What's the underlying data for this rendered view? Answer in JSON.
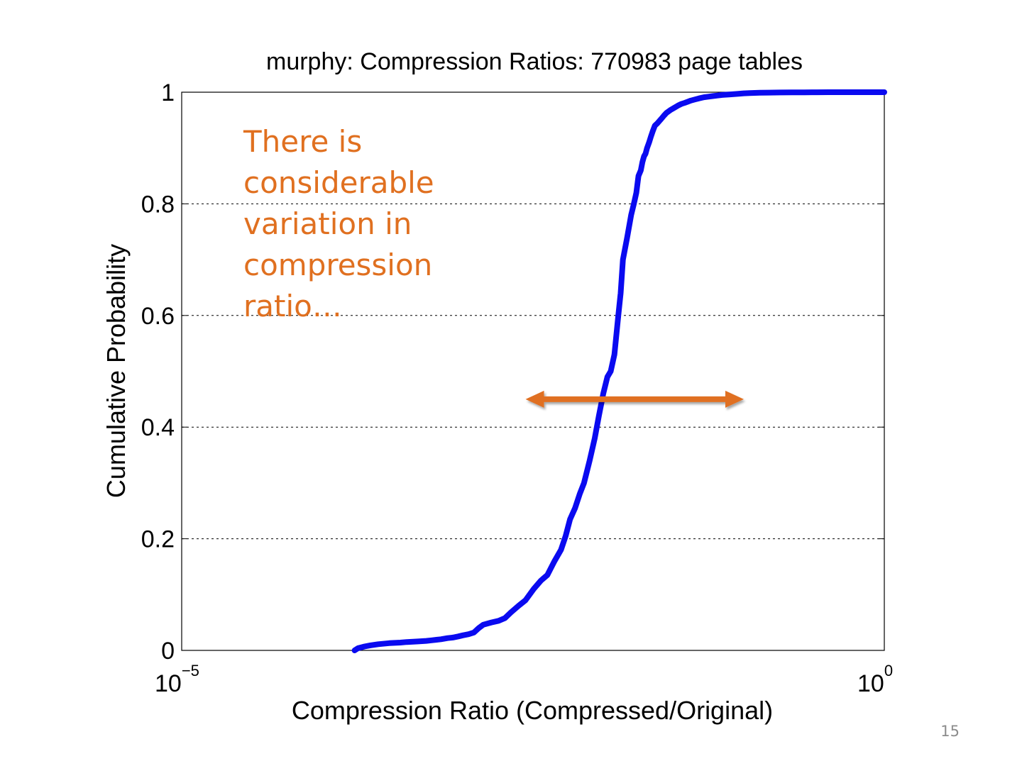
{
  "slide": {
    "page_number": "15"
  },
  "annotation": {
    "lines": [
      "There is",
      "considerable",
      "variation in",
      "compression",
      "ratio…"
    ],
    "color": "#E07020",
    "arrow": {
      "y": 0.45,
      "x_from": 0.0028,
      "x_to": 0.1,
      "color": "#E07020"
    }
  },
  "chart_data": {
    "type": "line",
    "title": "murphy: Compression Ratios: 770983 page tables",
    "xlabel": "Compression Ratio (Compressed/Original)",
    "ylabel": "Cumulative Probability",
    "xscale": "log",
    "xlim": [
      1e-05,
      1
    ],
    "ylim": [
      0,
      1
    ],
    "xticks": [
      {
        "base": "10",
        "exp": "−5",
        "value": 1e-05
      },
      {
        "base": "10",
        "exp": "0",
        "value": 1
      }
    ],
    "yticks": [
      {
        "label": "0",
        "value": 0
      },
      {
        "label": "0.2",
        "value": 0.2
      },
      {
        "label": "0.4",
        "value": 0.4
      },
      {
        "label": "0.6",
        "value": 0.6
      },
      {
        "label": "0.8",
        "value": 0.8
      },
      {
        "label": "1",
        "value": 1
      }
    ],
    "grid": "y-dotted",
    "series": [
      {
        "color": "#0A0AF0",
        "x": [
          0.00017,
          0.00018,
          0.0002,
          0.00022,
          0.00025,
          0.0003,
          0.00036,
          0.0004,
          0.00048,
          0.00055,
          0.0006,
          0.00065,
          0.0007,
          0.00078,
          0.00085,
          0.00093,
          0.001,
          0.0011,
          0.0012,
          0.0013,
          0.0014,
          0.0016,
          0.0018,
          0.002,
          0.0022,
          0.0025,
          0.0028,
          0.0032,
          0.0036,
          0.004,
          0.0045,
          0.005,
          0.0054,
          0.0058,
          0.0063,
          0.0068,
          0.0073,
          0.008,
          0.0087,
          0.0093,
          0.01,
          0.0107,
          0.0113,
          0.012,
          0.0128,
          0.0133,
          0.0138,
          0.0148,
          0.0158,
          0.0165,
          0.0172,
          0.0178,
          0.0185,
          0.019,
          0.0195,
          0.02,
          0.0205,
          0.0212,
          0.0218,
          0.0225,
          0.0233,
          0.0242,
          0.025,
          0.026,
          0.027,
          0.0282,
          0.03,
          0.032,
          0.034,
          0.036,
          0.038,
          0.04,
          0.042,
          0.045,
          0.048,
          0.052,
          0.056,
          0.06,
          0.065,
          0.07,
          0.08,
          0.09,
          0.1,
          0.11,
          0.13,
          0.15,
          0.18,
          0.22,
          0.27,
          0.33,
          0.4,
          0.5,
          0.6,
          0.75,
          1.0
        ],
        "y": [
          0.0,
          0.004,
          0.007,
          0.009,
          0.011,
          0.013,
          0.014,
          0.015,
          0.016,
          0.017,
          0.018,
          0.019,
          0.02,
          0.022,
          0.023,
          0.025,
          0.027,
          0.029,
          0.032,
          0.04,
          0.046,
          0.05,
          0.053,
          0.058,
          0.068,
          0.08,
          0.09,
          0.11,
          0.125,
          0.135,
          0.16,
          0.18,
          0.205,
          0.235,
          0.255,
          0.28,
          0.3,
          0.34,
          0.38,
          0.42,
          0.46,
          0.49,
          0.5,
          0.53,
          0.6,
          0.64,
          0.7,
          0.74,
          0.78,
          0.8,
          0.82,
          0.85,
          0.86,
          0.875,
          0.885,
          0.89,
          0.9,
          0.91,
          0.92,
          0.93,
          0.94,
          0.944,
          0.948,
          0.953,
          0.958,
          0.963,
          0.968,
          0.972,
          0.976,
          0.979,
          0.981,
          0.983,
          0.985,
          0.987,
          0.989,
          0.991,
          0.992,
          0.993,
          0.994,
          0.995,
          0.996,
          0.997,
          0.998,
          0.9985,
          0.999,
          0.9993,
          0.9995,
          0.9997,
          0.9998,
          0.9999,
          1.0,
          1.0,
          1.0,
          1.0,
          1.0
        ]
      }
    ]
  }
}
